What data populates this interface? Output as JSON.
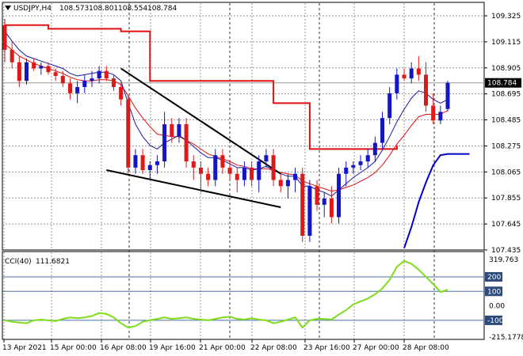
{
  "symbol_header": {
    "symbol": "USDJPY,H4",
    "open": "108.573",
    "high": "108.801",
    "low": "108.554",
    "close": "108.784"
  },
  "indicator_header": {
    "name": "CCI(40)",
    "value": "111.6821"
  },
  "price_axis": {
    "ticks": [
      "109.325",
      "109.115",
      "108.905",
      "108.695",
      "108.485",
      "108.275",
      "108.065",
      "107.855",
      "107.645",
      "107.435"
    ],
    "current_price": "108.784"
  },
  "cci_axis": {
    "ticks": [
      "319.763",
      "200",
      "100",
      "0.00",
      "-100",
      "-215.1778"
    ]
  },
  "time_axis": {
    "labels": [
      "13 Apr 2021",
      "15 Apr 00:00",
      "16 Apr 08:00",
      "19 Apr 16:00",
      "21 Apr 00:00",
      "22 Apr 08:00",
      "23 Apr 16:00",
      "27 Apr 00:00",
      "28 Apr 08:00"
    ]
  },
  "colors": {
    "bull": "#1515c8",
    "bear": "#dd1a1a",
    "ma_fast": "#1a1a9a",
    "ma_slow": "#e01010",
    "stop_red": "#e01010",
    "stop_blue": "#0000cc",
    "cci": "#7ddd1a",
    "grid": "#9a9a9a",
    "ref_line": "#4a6fa5"
  },
  "chart_data": {
    "type": "candlestick",
    "symbol": "USDJPY",
    "timeframe": "H4",
    "ylim": [
      107.435,
      109.325
    ],
    "candles": [
      [
        109.25,
        109.3,
        108.95,
        109.05
      ],
      [
        109.05,
        109.12,
        108.9,
        108.95
      ],
      [
        108.95,
        109.0,
        108.75,
        108.8
      ],
      [
        108.8,
        108.98,
        108.77,
        108.95
      ],
      [
        108.95,
        108.98,
        108.88,
        108.9
      ],
      [
        108.9,
        108.95,
        108.85,
        108.92
      ],
      [
        108.92,
        108.95,
        108.85,
        108.87
      ],
      [
        108.87,
        108.9,
        108.8,
        108.84
      ],
      [
        108.84,
        108.88,
        108.75,
        108.78
      ],
      [
        108.78,
        108.82,
        108.65,
        108.7
      ],
      [
        108.7,
        108.8,
        108.62,
        108.75
      ],
      [
        108.75,
        108.85,
        108.7,
        108.8
      ],
      [
        108.8,
        108.88,
        108.75,
        108.82
      ],
      [
        108.82,
        108.92,
        108.78,
        108.88
      ],
      [
        108.88,
        108.92,
        108.8,
        108.82
      ],
      [
        108.82,
        108.85,
        108.72,
        108.75
      ],
      [
        108.75,
        108.78,
        108.6,
        108.65
      ],
      [
        108.65,
        108.68,
        108.05,
        108.1
      ],
      [
        108.1,
        108.25,
        108.05,
        108.2
      ],
      [
        108.2,
        108.25,
        108.05,
        108.08
      ],
      [
        108.08,
        108.15,
        108.0,
        108.12
      ],
      [
        108.12,
        108.2,
        108.05,
        108.15
      ],
      [
        108.15,
        108.55,
        108.1,
        108.45
      ],
      [
        108.45,
        108.5,
        108.3,
        108.35
      ],
      [
        108.35,
        108.5,
        108.3,
        108.45
      ],
      [
        108.45,
        108.5,
        108.1,
        108.15
      ],
      [
        108.15,
        108.2,
        108.0,
        108.1
      ],
      [
        108.1,
        108.15,
        107.9,
        108.05
      ],
      [
        108.05,
        108.1,
        107.95,
        108.0
      ],
      [
        108.0,
        108.25,
        107.95,
        108.2
      ],
      [
        108.2,
        108.25,
        108.05,
        108.1
      ],
      [
        108.1,
        108.15,
        108.0,
        108.05
      ],
      [
        108.05,
        108.1,
        107.9,
        108.0
      ],
      [
        108.0,
        108.15,
        107.95,
        108.1
      ],
      [
        108.1,
        108.15,
        107.95,
        108.0
      ],
      [
        108.0,
        108.2,
        107.9,
        108.15
      ],
      [
        108.15,
        108.25,
        108.1,
        108.2
      ],
      [
        108.2,
        108.25,
        107.95,
        108.0
      ],
      [
        108.0,
        108.05,
        107.9,
        107.95
      ],
      [
        107.95,
        108.05,
        107.85,
        108.0
      ],
      [
        108.0,
        108.1,
        107.9,
        108.05
      ],
      [
        108.05,
        108.1,
        107.5,
        107.55
      ],
      [
        107.55,
        108.0,
        107.5,
        107.95
      ],
      [
        107.95,
        108.0,
        107.75,
        107.8
      ],
      [
        107.8,
        107.9,
        107.7,
        107.85
      ],
      [
        107.85,
        107.95,
        107.65,
        107.7
      ],
      [
        107.7,
        108.1,
        107.65,
        108.05
      ],
      [
        108.05,
        108.15,
        107.95,
        108.1
      ],
      [
        108.1,
        108.15,
        108.05,
        108.12
      ],
      [
        108.12,
        108.2,
        108.08,
        108.15
      ],
      [
        108.15,
        108.25,
        108.1,
        108.2
      ],
      [
        108.2,
        108.35,
        108.15,
        108.3
      ],
      [
        108.3,
        108.55,
        108.25,
        108.5
      ],
      [
        108.5,
        108.75,
        108.45,
        108.7
      ],
      [
        108.7,
        108.9,
        108.65,
        108.85
      ],
      [
        108.85,
        108.9,
        108.8,
        108.82
      ],
      [
        108.82,
        108.95,
        108.78,
        108.9
      ],
      [
        108.9,
        109.0,
        108.8,
        108.85
      ],
      [
        108.85,
        108.95,
        108.55,
        108.6
      ],
      [
        108.6,
        108.7,
        108.45,
        108.48
      ],
      [
        108.48,
        108.6,
        108.45,
        108.55
      ],
      [
        108.573,
        108.801,
        108.554,
        108.784
      ]
    ],
    "ma_fast": [
      109.2,
      109.12,
      109.05,
      109.0,
      108.98,
      108.96,
      108.94,
      108.92,
      108.9,
      108.86,
      108.84,
      108.85,
      108.86,
      108.87,
      108.87,
      108.85,
      108.8,
      108.62,
      108.45,
      108.35,
      108.28,
      108.25,
      108.3,
      108.33,
      108.36,
      108.32,
      108.27,
      108.22,
      108.18,
      108.18,
      108.16,
      108.13,
      108.1,
      108.1,
      108.08,
      108.09,
      108.11,
      108.08,
      108.05,
      108.03,
      108.03,
      107.95,
      107.95,
      107.92,
      107.9,
      107.87,
      107.92,
      107.97,
      108.02,
      108.06,
      108.1,
      108.15,
      108.24,
      108.35,
      108.47,
      108.57,
      108.66,
      108.72,
      108.7,
      108.65,
      108.62,
      108.65
    ],
    "ma_slow": [
      109.1,
      109.05,
      109.0,
      108.97,
      108.94,
      108.92,
      108.9,
      108.88,
      108.86,
      108.83,
      108.81,
      108.8,
      108.8,
      108.81,
      108.81,
      108.8,
      108.77,
      108.68,
      108.58,
      108.5,
      108.43,
      108.37,
      108.36,
      108.35,
      108.35,
      108.32,
      108.29,
      108.25,
      108.21,
      108.19,
      108.17,
      108.15,
      108.12,
      108.11,
      108.09,
      108.09,
      108.09,
      108.08,
      108.06,
      108.05,
      108.04,
      107.99,
      107.97,
      107.95,
      107.93,
      107.91,
      107.92,
      107.94,
      107.96,
      107.99,
      108.02,
      108.06,
      108.12,
      108.2,
      108.29,
      108.36,
      108.44,
      108.51,
      108.53,
      108.53,
      108.53,
      108.56
    ],
    "stop_red": [
      [
        0,
        109.25
      ],
      [
        6,
        109.25
      ],
      [
        6,
        109.22
      ],
      [
        16,
        109.22
      ],
      [
        16,
        109.2
      ],
      [
        20,
        109.2
      ],
      [
        20,
        108.8
      ],
      [
        37,
        108.8
      ],
      [
        37,
        108.62
      ],
      [
        42,
        108.62
      ],
      [
        42,
        108.25
      ],
      [
        54,
        108.25
      ],
      [
        54,
        108.28
      ]
    ],
    "stop_blue": [
      [
        55,
        107.45
      ],
      [
        56,
        107.62
      ],
      [
        57,
        107.82
      ],
      [
        58,
        107.98
      ],
      [
        59,
        108.12
      ],
      [
        60,
        108.2
      ],
      [
        61,
        108.21
      ],
      [
        64,
        108.21
      ]
    ],
    "trendlines": [
      {
        "from": [
          16,
          108.9
        ],
        "to": [
          38,
          108.05
        ]
      },
      {
        "from": [
          14,
          108.08
        ],
        "to": [
          38,
          107.78
        ]
      }
    ],
    "cci": [
      -100,
      -110,
      -115,
      -120,
      -100,
      -95,
      -100,
      -105,
      -90,
      -80,
      -85,
      -80,
      -70,
      -50,
      -55,
      -80,
      -120,
      -150,
      -140,
      -110,
      -100,
      -90,
      -80,
      -90,
      -85,
      -80,
      -90,
      -95,
      -100,
      -90,
      -80,
      -75,
      -90,
      -95,
      -85,
      -95,
      -100,
      -120,
      -110,
      -95,
      -80,
      -150,
      -100,
      -90,
      -90,
      -95,
      -60,
      -30,
      10,
      30,
      50,
      80,
      120,
      180,
      270,
      310,
      290,
      250,
      200,
      150,
      95,
      112
    ]
  }
}
